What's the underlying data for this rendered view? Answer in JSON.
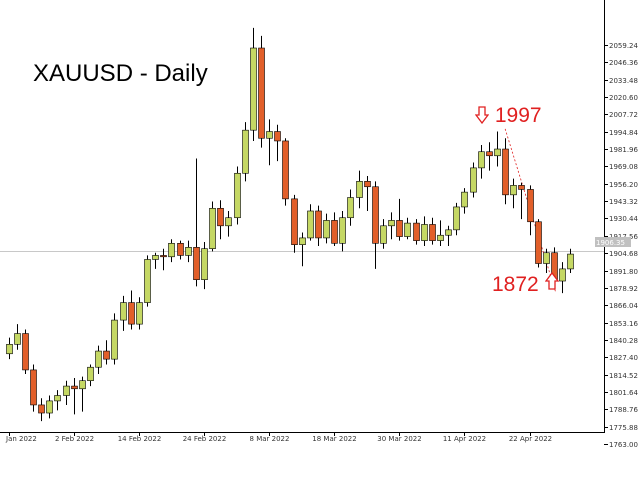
{
  "chart_data": {
    "type": "candlestick",
    "title": "XAUUSD - Daily",
    "colors": {
      "up": "#c5d864",
      "down": "#e25f2a",
      "annotation": "#e02020",
      "axis": "#000000",
      "price_line": "#c8c8c8",
      "current_price_box": "#c0c0c0"
    },
    "yaxis": {
      "ticks": [
        "2059.24",
        "2046.36",
        "2033.48",
        "2020.60",
        "2007.72",
        "1994.84",
        "1981.96",
        "1969.08",
        "1956.20",
        "1943.32",
        "1930.44",
        "1917.56",
        "1904.68",
        "1891.80",
        "1878.92",
        "1866.04",
        "1853.16",
        "1840.28",
        "1827.40",
        "1814.52",
        "1801.64",
        "1788.76",
        "1775.88",
        "1763.00"
      ],
      "ylim": [
        1760,
        2072
      ]
    },
    "xaxis": {
      "ticks": [
        {
          "label": "Jan 2022",
          "index": 0
        },
        {
          "label": "2 Feb 2022",
          "index": 8
        },
        {
          "label": "14 Feb 2022",
          "index": 16
        },
        {
          "label": "24 Feb 2022",
          "index": 24
        },
        {
          "label": "8 Mar 2022",
          "index": 32
        },
        {
          "label": "18 Mar 2022",
          "index": 40
        },
        {
          "label": "30 Mar 2022",
          "index": 48
        },
        {
          "label": "11 Apr 2022",
          "index": 56
        },
        {
          "label": "22 Apr 2022",
          "index": 64
        }
      ]
    },
    "current_price": "1906.35",
    "candles": [
      {
        "o": 1830,
        "h": 1842,
        "l": 1826,
        "c": 1837
      },
      {
        "o": 1837,
        "h": 1852,
        "l": 1833,
        "c": 1845
      },
      {
        "o": 1845,
        "h": 1848,
        "l": 1815,
        "c": 1818
      },
      {
        "o": 1818,
        "h": 1822,
        "l": 1787,
        "c": 1792
      },
      {
        "o": 1792,
        "h": 1797,
        "l": 1780,
        "c": 1786
      },
      {
        "o": 1786,
        "h": 1799,
        "l": 1782,
        "c": 1795
      },
      {
        "o": 1795,
        "h": 1803,
        "l": 1788,
        "c": 1799
      },
      {
        "o": 1799,
        "h": 1810,
        "l": 1792,
        "c": 1806
      },
      {
        "o": 1806,
        "h": 1812,
        "l": 1785,
        "c": 1804
      },
      {
        "o": 1804,
        "h": 1813,
        "l": 1787,
        "c": 1810
      },
      {
        "o": 1810,
        "h": 1822,
        "l": 1806,
        "c": 1820
      },
      {
        "o": 1820,
        "h": 1836,
        "l": 1815,
        "c": 1832
      },
      {
        "o": 1832,
        "h": 1840,
        "l": 1822,
        "c": 1826
      },
      {
        "o": 1826,
        "h": 1860,
        "l": 1822,
        "c": 1855
      },
      {
        "o": 1855,
        "h": 1873,
        "l": 1847,
        "c": 1868
      },
      {
        "o": 1868,
        "h": 1877,
        "l": 1848,
        "c": 1852
      },
      {
        "o": 1852,
        "h": 1872,
        "l": 1848,
        "c": 1868
      },
      {
        "o": 1868,
        "h": 1903,
        "l": 1865,
        "c": 1900
      },
      {
        "o": 1900,
        "h": 1905,
        "l": 1893,
        "c": 1903
      },
      {
        "o": 1903,
        "h": 1908,
        "l": 1892,
        "c": 1902
      },
      {
        "o": 1902,
        "h": 1915,
        "l": 1898,
        "c": 1912
      },
      {
        "o": 1912,
        "h": 1914,
        "l": 1900,
        "c": 1903
      },
      {
        "o": 1903,
        "h": 1914,
        "l": 1898,
        "c": 1909
      },
      {
        "o": 1909,
        "h": 1975,
        "l": 1880,
        "c": 1885
      },
      {
        "o": 1885,
        "h": 1913,
        "l": 1878,
        "c": 1908
      },
      {
        "o": 1908,
        "h": 1943,
        "l": 1906,
        "c": 1938
      },
      {
        "o": 1938,
        "h": 1944,
        "l": 1915,
        "c": 1925
      },
      {
        "o": 1925,
        "h": 1936,
        "l": 1917,
        "c": 1931
      },
      {
        "o": 1931,
        "h": 1969,
        "l": 1926,
        "c": 1964
      },
      {
        "o": 1964,
        "h": 2002,
        "l": 1958,
        "c": 1996
      },
      {
        "o": 1996,
        "h": 2072,
        "l": 1988,
        "c": 2057
      },
      {
        "o": 2057,
        "h": 2066,
        "l": 1983,
        "c": 1990
      },
      {
        "o": 1990,
        "h": 2004,
        "l": 1970,
        "c": 1995
      },
      {
        "o": 1995,
        "h": 2000,
        "l": 1973,
        "c": 1988
      },
      {
        "o": 1988,
        "h": 1990,
        "l": 1940,
        "c": 1945
      },
      {
        "o": 1945,
        "h": 1948,
        "l": 1905,
        "c": 1911
      },
      {
        "o": 1911,
        "h": 1920,
        "l": 1895,
        "c": 1916
      },
      {
        "o": 1916,
        "h": 1941,
        "l": 1914,
        "c": 1936
      },
      {
        "o": 1936,
        "h": 1940,
        "l": 1910,
        "c": 1916
      },
      {
        "o": 1916,
        "h": 1934,
        "l": 1912,
        "c": 1929
      },
      {
        "o": 1929,
        "h": 1935,
        "l": 1910,
        "c": 1912
      },
      {
        "o": 1912,
        "h": 1936,
        "l": 1906,
        "c": 1931
      },
      {
        "o": 1931,
        "h": 1952,
        "l": 1925,
        "c": 1946
      },
      {
        "o": 1946,
        "h": 1966,
        "l": 1938,
        "c": 1958
      },
      {
        "o": 1958,
        "h": 1962,
        "l": 1936,
        "c": 1954
      },
      {
        "o": 1954,
        "h": 1958,
        "l": 1893,
        "c": 1912
      },
      {
        "o": 1912,
        "h": 1930,
        "l": 1908,
        "c": 1925
      },
      {
        "o": 1925,
        "h": 1935,
        "l": 1915,
        "c": 1929
      },
      {
        "o": 1929,
        "h": 1945,
        "l": 1914,
        "c": 1917
      },
      {
        "o": 1917,
        "h": 1931,
        "l": 1915,
        "c": 1927
      },
      {
        "o": 1927,
        "h": 1930,
        "l": 1911,
        "c": 1914
      },
      {
        "o": 1914,
        "h": 1932,
        "l": 1910,
        "c": 1926
      },
      {
        "o": 1926,
        "h": 1931,
        "l": 1911,
        "c": 1914
      },
      {
        "o": 1914,
        "h": 1929,
        "l": 1910,
        "c": 1918
      },
      {
        "o": 1918,
        "h": 1925,
        "l": 1910,
        "c": 1922
      },
      {
        "o": 1922,
        "h": 1942,
        "l": 1918,
        "c": 1939
      },
      {
        "o": 1939,
        "h": 1953,
        "l": 1934,
        "c": 1950
      },
      {
        "o": 1950,
        "h": 1972,
        "l": 1946,
        "c": 1968
      },
      {
        "o": 1968,
        "h": 1985,
        "l": 1960,
        "c": 1980
      },
      {
        "o": 1980,
        "h": 1987,
        "l": 1966,
        "c": 1977
      },
      {
        "o": 1977,
        "h": 1995,
        "l": 1969,
        "c": 1982
      },
      {
        "o": 1982,
        "h": 1990,
        "l": 1941,
        "c": 1948
      },
      {
        "o": 1948,
        "h": 1960,
        "l": 1938,
        "c": 1955
      },
      {
        "o": 1955,
        "h": 1957,
        "l": 1930,
        "c": 1952
      },
      {
        "o": 1952,
        "h": 1955,
        "l": 1918,
        "c": 1928
      },
      {
        "o": 1928,
        "h": 1930,
        "l": 1894,
        "c": 1897
      },
      {
        "o": 1897,
        "h": 1908,
        "l": 1890,
        "c": 1905
      },
      {
        "o": 1905,
        "h": 1909,
        "l": 1878,
        "c": 1884
      },
      {
        "o": 1884,
        "h": 1898,
        "l": 1875,
        "c": 1893
      },
      {
        "o": 1893,
        "h": 1908,
        "l": 1890,
        "c": 1904
      }
    ],
    "annotations": [
      {
        "text": "1997",
        "arrow": "down",
        "index": 61,
        "price": 1997
      },
      {
        "text": "1872",
        "arrow": "up",
        "index": 67,
        "price": 1872
      }
    ]
  }
}
